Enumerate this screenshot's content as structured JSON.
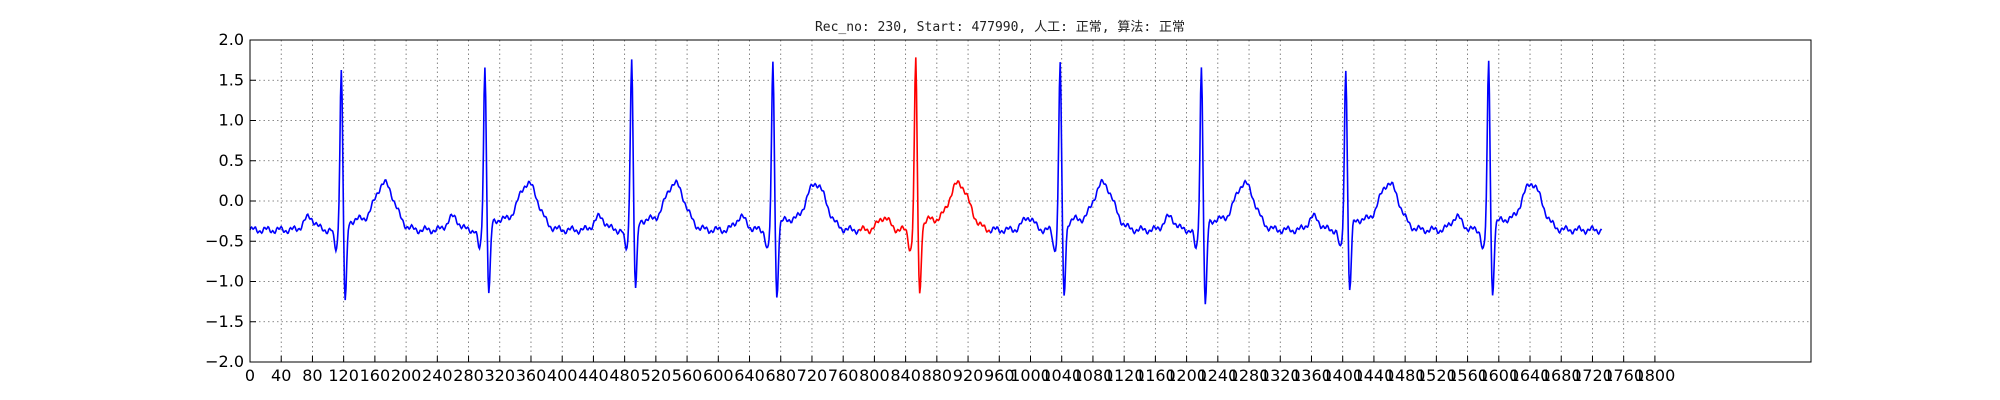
{
  "chart_data": {
    "type": "line",
    "title": "Rec_no: 230, Start: 477990, 人工: 正常, 算法: 正常",
    "xlabel": "",
    "ylabel": "",
    "xlim": [
      0,
      2000
    ],
    "ylim": [
      -2.0,
      2.0
    ],
    "y_ticks": [
      "2.0",
      "1.5",
      "1.0",
      "0.5",
      "0.0",
      "−0.5",
      "−1.0",
      "−1.5",
      "−2.0"
    ],
    "x_tick_step": 40,
    "x_tick_max": 1800,
    "grid": "dotted",
    "colors": {
      "signal": "#0000ff",
      "highlight": "#ff0000"
    },
    "beats": [
      {
        "r_x": 117,
        "r_peak": 1.45,
        "s_min": -1.72,
        "highlight": false
      },
      {
        "r_x": 301,
        "r_peak": 1.48,
        "s_min": -1.62,
        "highlight": false
      },
      {
        "r_x": 489,
        "r_peak": 1.6,
        "s_min": -1.55,
        "highlight": false
      },
      {
        "r_x": 670,
        "r_peak": 1.53,
        "s_min": -1.65,
        "highlight": false
      },
      {
        "r_x": 853,
        "r_peak": 1.55,
        "s_min": -1.63,
        "highlight": true
      },
      {
        "r_x": 1038,
        "r_peak": 1.53,
        "s_min": -1.65,
        "highlight": false
      },
      {
        "r_x": 1219,
        "r_peak": 1.48,
        "s_min": -1.78,
        "highlight": false
      },
      {
        "r_x": 1404,
        "r_peak": 1.45,
        "s_min": -1.58,
        "highlight": false
      },
      {
        "r_x": 1587,
        "r_peak": 1.53,
        "s_min": -1.63,
        "highlight": false
      }
    ],
    "highlight_range": [
      780,
      948
    ],
    "signal_end_x": 1732
  }
}
